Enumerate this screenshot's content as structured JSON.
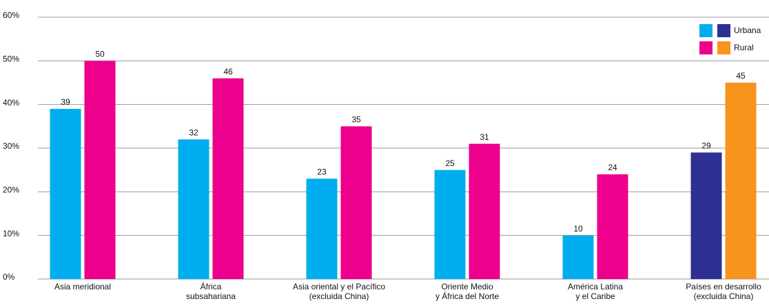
{
  "chart_data": {
    "type": "bar",
    "categories": [
      "Asia meridional",
      "África\nsubsahariana",
      "Asia oriental y el Pacífico\n(excluida China)",
      "Oriente Medio\ny África del Norte",
      "América Latina\ny el Caribe",
      "Países en desarrollo\n(excluida China)"
    ],
    "series": [
      {
        "name": "Urbana",
        "colors": [
          "#00aeef",
          "#00aeef",
          "#00aeef",
          "#00aeef",
          "#00aeef",
          "#2e3192"
        ],
        "values": [
          39,
          32,
          23,
          25,
          10,
          29
        ]
      },
      {
        "name": "Rural",
        "colors": [
          "#ec008c",
          "#ec008c",
          "#ec008c",
          "#ec008c",
          "#ec008c",
          "#f7941d"
        ],
        "values": [
          50,
          46,
          35,
          31,
          24,
          45
        ]
      }
    ],
    "ylim": [
      0,
      60
    ],
    "yticks": [
      {
        "value": 0,
        "label": "0%"
      },
      {
        "value": 10,
        "label": "10%"
      },
      {
        "value": 20,
        "label": "20%"
      },
      {
        "value": 30,
        "label": "30%"
      },
      {
        "value": 40,
        "label": "40%"
      },
      {
        "value": 50,
        "label": "50%"
      },
      {
        "value": 60,
        "label": "60%"
      }
    ],
    "grid": true,
    "legend": "top-right"
  }
}
